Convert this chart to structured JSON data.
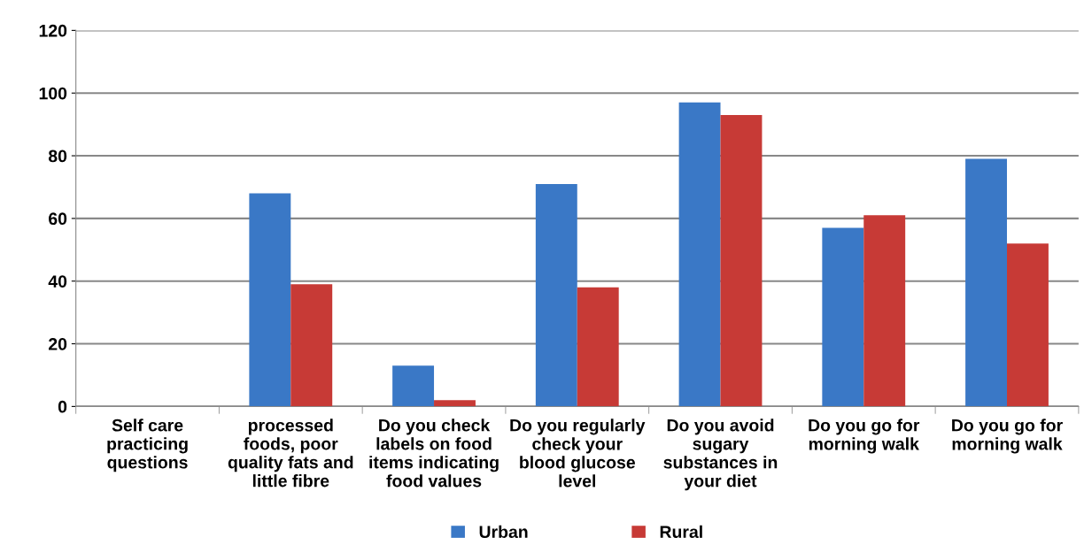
{
  "chart_data": {
    "type": "bar",
    "categories": [
      "Self care\npracticing\nquestions",
      "processed\nfoods, poor\nquality fats and\nlittle fibre",
      "Do you check\nlabels on food\nitems indicating\nfood values",
      "Do you regularly\ncheck your\nblood glucose\nlevel",
      "Do you avoid\nsugary\nsubstances in\nyour diet",
      "Do you go for\nmorning walk",
      "Do you go for\nmorning walk"
    ],
    "series": [
      {
        "name": "Urban",
        "color": "#3a78c6",
        "values": [
          0,
          68,
          13,
          71,
          97,
          57,
          79
        ]
      },
      {
        "name": "Rural",
        "color": "#c73a36",
        "values": [
          0,
          39,
          2,
          38,
          93,
          61,
          52
        ]
      }
    ],
    "ylim": [
      0,
      120
    ],
    "yticks": [
      0,
      20,
      40,
      60,
      80,
      100,
      120
    ],
    "grid": "y",
    "legend": "bottom"
  }
}
